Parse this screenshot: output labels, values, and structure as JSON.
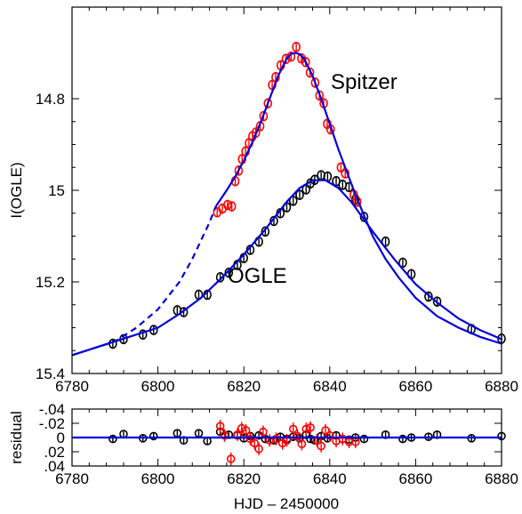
{
  "chart_data": [
    {
      "type": "scatter",
      "title": "",
      "xlabel": "",
      "ylabel": "I(OGLE)",
      "xlim": [
        6780,
        6880
      ],
      "ylim": [
        15.4,
        14.6
      ],
      "y_inverted": true,
      "xticks": [
        "6780",
        "6800",
        "6820",
        "6840",
        "6860",
        "6880"
      ],
      "yticks": [
        "14.8",
        "15",
        "15.2",
        "15.4"
      ],
      "annotations": [
        "Spitzer",
        "OGLE"
      ],
      "colors": {
        "ogle": "#000000",
        "spitzer": "#ff0000",
        "model": "#0000dd"
      },
      "series": [
        {
          "label": "OGLE",
          "kind": "points",
          "x": [
            6789.5,
            6792,
            6796.5,
            6799,
            6804.5,
            6806,
            6809.5,
            6811.5,
            6814.5,
            6816.5,
            6818.5,
            6820,
            6821.5,
            6823.5,
            6825,
            6827,
            6828.5,
            6830,
            6831.5,
            6833,
            6834.5,
            6835.5,
            6836.5,
            6838,
            6839.5,
            6841.5,
            6843,
            6844.5,
            6846,
            6848,
            6853,
            6857,
            6859,
            6863,
            6865,
            6873,
            6880
          ],
          "y": [
            15.335,
            15.325,
            15.315,
            15.305,
            15.262,
            15.266,
            15.228,
            15.228,
            15.19,
            15.18,
            15.163,
            15.148,
            15.13,
            15.112,
            15.09,
            15.067,
            15.05,
            15.037,
            15.023,
            15.01,
            14.998,
            14.985,
            14.977,
            14.967,
            14.97,
            14.98,
            14.988,
            14.993,
            15.02,
            15.058,
            15.112,
            15.158,
            15.183,
            15.232,
            15.243,
            15.303,
            15.324
          ],
          "yerr": 0.008
        },
        {
          "label": "Spitzer",
          "kind": "points",
          "x": [
            6813.8,
            6815,
            6816.2,
            6817.2,
            6818,
            6818.8,
            6819.6,
            6820.4,
            6821.2,
            6822,
            6822.8,
            6823.8,
            6824.6,
            6825.6,
            6826.6,
            6827.4,
            6828.6,
            6829.8,
            6831,
            6832.2,
            6833.4,
            6834.4,
            6835.4,
            6836.6,
            6837.6,
            6838.6,
            6839.4,
            6840.2,
            6842.6,
            6843.6,
            6845.6,
            6846.4
          ],
          "y": [
            15.048,
            15.04,
            15.032,
            15.035,
            14.98,
            14.957,
            14.932,
            14.915,
            14.897,
            14.882,
            14.874,
            14.86,
            14.838,
            14.81,
            14.77,
            14.753,
            14.727,
            14.713,
            14.708,
            14.687,
            14.712,
            14.72,
            14.743,
            14.765,
            14.793,
            14.81,
            14.855,
            14.867,
            14.95,
            14.963,
            15.01,
            15.025
          ],
          "yerr": 0.011
        },
        {
          "label": "OGLE model",
          "kind": "line",
          "style": "solid",
          "x": [
            6780,
            6790,
            6800,
            6805,
            6810,
            6815,
            6820,
            6825,
            6830,
            6833,
            6836,
            6839,
            6842,
            6845,
            6850,
            6855,
            6860,
            6865,
            6870,
            6875,
            6880
          ],
          "y": [
            15.36,
            15.33,
            15.3,
            15.27,
            15.235,
            15.19,
            15.14,
            15.085,
            15.025,
            14.995,
            14.978,
            14.978,
            14.995,
            15.025,
            15.09,
            15.15,
            15.205,
            15.245,
            15.28,
            15.305,
            15.325
          ]
        },
        {
          "label": "Spitzer model",
          "kind": "line",
          "style": "solid",
          "x": [
            6813.5,
            6816,
            6818,
            6820,
            6822,
            6824,
            6826,
            6828,
            6830,
            6831,
            6832,
            6833,
            6834,
            6836,
            6838,
            6840,
            6842,
            6844,
            6846,
            6848,
            6850,
            6853,
            6856,
            6860,
            6865,
            6870,
            6875,
            6880
          ],
          "y": [
            15.035,
            15.0,
            14.97,
            14.935,
            14.895,
            14.85,
            14.8,
            14.75,
            14.712,
            14.702,
            14.7,
            14.703,
            14.712,
            14.75,
            14.8,
            14.855,
            14.91,
            14.96,
            15.01,
            15.055,
            15.1,
            15.15,
            15.19,
            15.235,
            15.275,
            15.3,
            15.32,
            15.335
          ]
        },
        {
          "label": "Spitzer model extension",
          "kind": "line",
          "style": "dashed",
          "x": [
            6780,
            6785,
            6790,
            6795,
            6800,
            6805,
            6808,
            6810,
            6812,
            6813.5
          ],
          "y": [
            15.36,
            15.345,
            15.33,
            15.3,
            15.26,
            15.2,
            15.15,
            15.11,
            15.07,
            15.035
          ]
        }
      ]
    },
    {
      "type": "scatter",
      "title": "",
      "xlabel": "HJD – 2450000",
      "ylabel": "residual",
      "xlim": [
        6780,
        6880
      ],
      "ylim": [
        0.04,
        -0.04
      ],
      "y_inverted": true,
      "xticks": [
        "6780",
        "6800",
        "6820",
        "6840",
        "6860",
        "6880"
      ],
      "yticks": [
        "-.04",
        "-.02",
        "0",
        ".02",
        ".04"
      ],
      "series": [
        {
          "label": "OGLE residual",
          "kind": "points",
          "x": [
            6789.5,
            6792,
            6796.5,
            6799,
            6804.5,
            6806,
            6809.5,
            6811.5,
            6814.5,
            6816.5,
            6818.5,
            6820,
            6821.5,
            6823.5,
            6825,
            6827,
            6828.5,
            6830,
            6831.5,
            6833,
            6834.5,
            6835.5,
            6836.5,
            6838,
            6839.5,
            6841.5,
            6843,
            6844.5,
            6846,
            6848,
            6853,
            6857,
            6859,
            6863,
            6865,
            6873,
            6880
          ],
          "y": [
            0.002,
            -0.005,
            0.001,
            -0.002,
            -0.006,
            0.004,
            -0.006,
            0.005,
            -0.008,
            -0.004,
            -0.003,
            0.001,
            -0.002,
            -0.003,
            0.002,
            0.004,
            -0.001,
            0.002,
            -0.001,
            0.001,
            -0.004,
            0.002,
            0.004,
            -0.002,
            0.001,
            -0.003,
            0.002,
            0.003,
            0.0,
            0.002,
            -0.004,
            0.002,
            0.0,
            -0.001,
            -0.004,
            0.001,
            -0.002
          ],
          "yerr": 0.005
        },
        {
          "label": "Spitzer residual",
          "kind": "points",
          "x": [
            6814.5,
            6815.5,
            6817,
            6818.5,
            6819.5,
            6820.5,
            6821.5,
            6822.5,
            6823.5,
            6824.5,
            6826,
            6827.5,
            6829,
            6830,
            6831.5,
            6832.5,
            6833.5,
            6834.5,
            6835.5,
            6837,
            6838,
            6839,
            6840,
            6841.5,
            6843,
            6844.5,
            6846
          ],
          "y": [
            -0.016,
            -0.003,
            0.03,
            -0.004,
            -0.013,
            -0.01,
            0.002,
            0.008,
            0.016,
            -0.008,
            0.004,
            0.002,
            0.008,
            0.004,
            -0.012,
            -0.002,
            0.009,
            -0.012,
            -0.014,
            0.004,
            0.012,
            -0.01,
            -0.003,
            0.005,
            0.002,
            0.006,
            0.006
          ],
          "yerr": 0.009
        },
        {
          "label": "zero line",
          "kind": "line",
          "style": "solid",
          "x": [
            6780,
            6880
          ],
          "y": [
            0,
            0
          ]
        }
      ]
    }
  ]
}
